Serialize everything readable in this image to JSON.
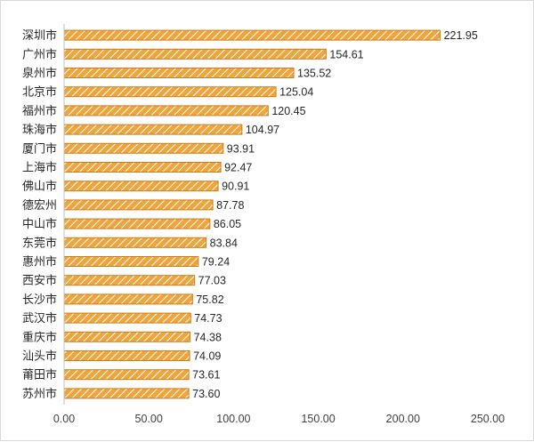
{
  "chart_data": {
    "type": "bar",
    "orientation": "horizontal",
    "categories": [
      "深圳市",
      "广州市",
      "泉州市",
      "北京市",
      "福州市",
      "珠海市",
      "厦门市",
      "上海市",
      "佛山市",
      "德宏州",
      "中山市",
      "东莞市",
      "惠州市",
      "西安市",
      "长沙市",
      "武汉市",
      "重庆市",
      "汕头市",
      "莆田市",
      "苏州市"
    ],
    "values": [
      221.95,
      154.61,
      135.52,
      125.04,
      120.45,
      104.97,
      93.91,
      92.47,
      90.91,
      87.78,
      86.05,
      83.84,
      79.24,
      77.03,
      75.82,
      74.73,
      74.38,
      74.09,
      73.61,
      73.6
    ],
    "value_labels": [
      "221.95",
      "154.61",
      "135.52",
      "125.04",
      "120.45",
      "104.97",
      "93.91",
      "92.47",
      "90.91",
      "87.78",
      "86.05",
      "83.84",
      "79.24",
      "77.03",
      "75.82",
      "74.73",
      "74.38",
      "74.09",
      "73.61",
      "73.60"
    ],
    "xlim": [
      0,
      250
    ],
    "xticks": [
      "0.00",
      "50.00",
      "100.00",
      "150.00",
      "200.00",
      "250.00"
    ],
    "title": "",
    "xlabel": "",
    "ylabel": "",
    "grid": false,
    "legend": "none",
    "colors": {
      "bar_fill": "#f0a43c",
      "bar_hatch": "#ffffff",
      "bar_border": "#c97f1d",
      "axis": "#bfbfbf"
    }
  }
}
